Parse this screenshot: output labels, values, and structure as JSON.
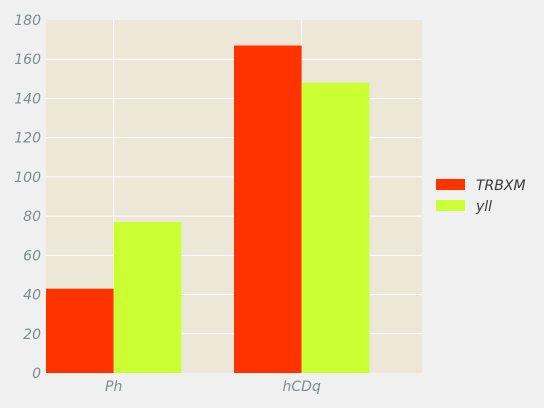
{
  "chart_data": {
    "type": "bar",
    "categories": [
      "Ph",
      "hCDq"
    ],
    "series": [
      {
        "name": "TRBXM",
        "values": [
          43,
          167
        ],
        "color": "#ff3300"
      },
      {
        "name": "yll",
        "values": [
          77,
          148
        ],
        "color": "#ccff33"
      }
    ],
    "ylim": [
      0,
      180
    ],
    "yticks": [
      0,
      20,
      40,
      60,
      80,
      100,
      120,
      140,
      160,
      180
    ],
    "grid": true,
    "legend_position": "right",
    "plot_background": "#ede7d8",
    "figure_background": "#f0f0f0",
    "grid_color": "#ffffff"
  }
}
